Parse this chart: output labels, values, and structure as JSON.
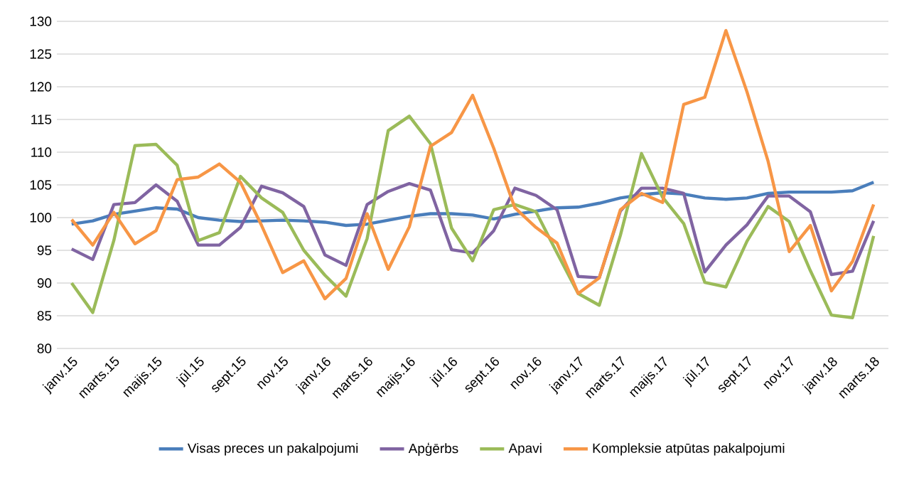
{
  "chart_data": {
    "type": "line",
    "categories": [
      "janv.15",
      null,
      "marts.15",
      null,
      "maijs.15",
      null,
      "jūl.15",
      null,
      "sept.15",
      null,
      "nov.15",
      null,
      "janv.16",
      null,
      "marts.16",
      null,
      "maijs.16",
      null,
      "jūl.16",
      null,
      "sept.16",
      null,
      "nov.16",
      null,
      "janv.17",
      null,
      "marts.17",
      null,
      "maijs.17",
      null,
      "jūl.17",
      null,
      "sept.17",
      null,
      "nov.17",
      null,
      "janv.18",
      null,
      "marts.18"
    ],
    "series": [
      {
        "name": "Visas preces un pakalpojumi",
        "color": "#4a7ebb",
        "values": [
          99,
          99.5,
          100.5,
          101,
          101.5,
          101.3,
          100,
          99.6,
          99.4,
          99.5,
          99.6,
          99.5,
          99.3,
          98.8,
          99,
          99.6,
          100.2,
          100.6,
          100.6,
          100.4,
          99.8,
          100.5,
          101,
          101.5,
          101.6,
          102.2,
          103,
          103.5,
          103.8,
          103.6,
          103,
          102.8,
          103,
          103.7,
          103.9,
          103.9,
          103.9,
          104.1,
          105.4
        ]
      },
      {
        "name": "Apģērbs",
        "color": "#8064a2",
        "values": [
          95.2,
          93.6,
          102,
          102.3,
          105,
          102.5,
          95.8,
          95.8,
          98.5,
          104.8,
          103.8,
          101.7,
          94.3,
          92.7,
          102,
          104,
          105.2,
          104.2,
          95.1,
          94.6,
          98,
          104.5,
          103.4,
          101.2,
          91,
          90.8,
          101,
          104.5,
          104.5,
          103.7,
          91.7,
          95.8,
          98.9,
          103.3,
          103.3,
          100.9,
          91.3,
          91.8,
          99.5
        ]
      },
      {
        "name": "Apavi",
        "color": "#9bbb59",
        "values": [
          90,
          85.5,
          96.5,
          111,
          111.2,
          108,
          96.5,
          97.7,
          106.3,
          103,
          100.8,
          95,
          91.2,
          88,
          96.8,
          113.3,
          115.5,
          111.3,
          98.4,
          93.4,
          101.2,
          102,
          100.9,
          94.6,
          88.4,
          86.6,
          97.3,
          109.8,
          103.1,
          99.1,
          90.1,
          89.4,
          96.4,
          101.7,
          99.4,
          91.9,
          85.1,
          84.7,
          97.2
        ]
      },
      {
        "name": "Kompleksie atpūtas pakalpojumi",
        "color": "#f79646",
        "values": [
          99.7,
          95.8,
          100.8,
          96,
          98,
          105.8,
          106.2,
          108.2,
          105.4,
          98.8,
          91.6,
          93.4,
          87.6,
          90.7,
          100.6,
          92.1,
          98.6,
          110.9,
          113,
          118.7,
          110.6,
          101.5,
          98.5,
          96.1,
          88.4,
          90.8,
          101.2,
          103.7,
          102.3,
          117.3,
          118.4,
          128.6,
          119.2,
          108.6,
          94.8,
          98.8,
          88.8,
          93.3,
          102
        ]
      }
    ],
    "ylim": [
      80,
      130
    ],
    "yticks": [
      80,
      85,
      90,
      95,
      100,
      105,
      110,
      115,
      120,
      125,
      130
    ],
    "grid": "y",
    "legend": "bottom",
    "marker": "none",
    "line_style": "solid"
  }
}
